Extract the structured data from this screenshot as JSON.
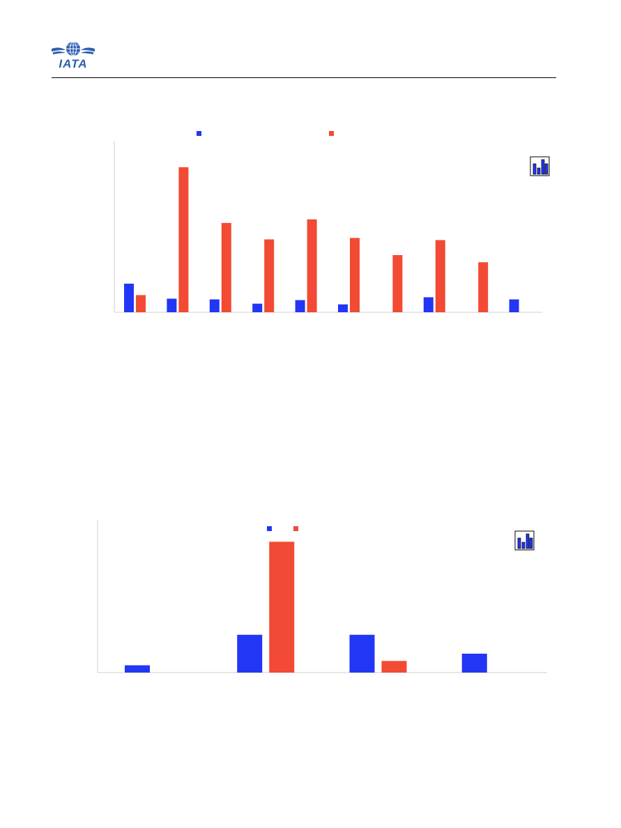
{
  "header": {
    "logo_text": "IATA"
  },
  "colors": {
    "series_a": "#2236f5",
    "series_b": "#f24a34",
    "axis": "#cfcfcf",
    "brand": "#2b5fb0"
  },
  "chart_data": [
    {
      "type": "bar",
      "legend": "top",
      "grid": false,
      "ylim": [
        0,
        240
      ],
      "categories": [
        "",
        "",
        "",
        "",
        "",
        "",
        "",
        "",
        "",
        ""
      ],
      "series": [
        {
          "values": [
            40,
            19,
            18,
            12,
            17,
            11,
            0,
            21,
            0,
            18
          ]
        },
        {
          "values": [
            24,
            203,
            125,
            102,
            130,
            104,
            80,
            101,
            70,
            0
          ]
        }
      ]
    },
    {
      "type": "bar",
      "legend": "top",
      "grid": false,
      "ylim": [
        0,
        210
      ],
      "categories": [
        "",
        "",
        "",
        ""
      ],
      "series": [
        {
          "values": [
            10,
            52,
            52,
            26
          ]
        },
        {
          "values": [
            0,
            180,
            16,
            0
          ]
        }
      ]
    }
  ]
}
